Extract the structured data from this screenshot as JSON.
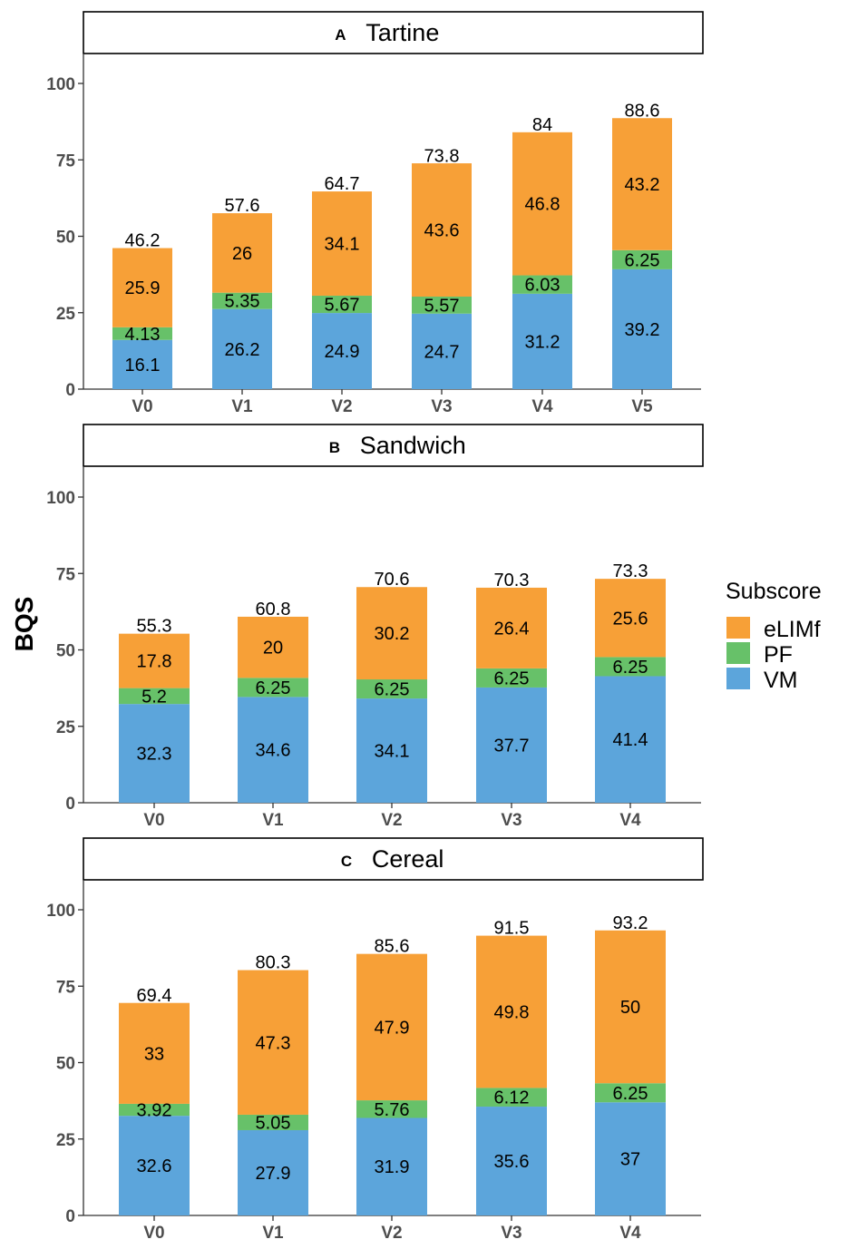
{
  "chart_data": [
    {
      "type": "bar",
      "stacked": true,
      "panel_letter": "A",
      "title": "Tartine",
      "categories": [
        "V0",
        "V1",
        "V2",
        "V3",
        "V4",
        "V5"
      ],
      "series": [
        {
          "name": "VM",
          "values": [
            16.1,
            26.2,
            24.9,
            24.7,
            31.2,
            39.2
          ]
        },
        {
          "name": "PF",
          "values": [
            4.13,
            5.35,
            5.67,
            5.57,
            6.03,
            6.25
          ]
        },
        {
          "name": "eLIMf",
          "values": [
            25.9,
            26,
            34.1,
            43.6,
            46.8,
            43.2
          ]
        }
      ],
      "totals": [
        46.2,
        57.6,
        64.7,
        73.8,
        84,
        88.6
      ],
      "ylim": [
        0,
        110
      ],
      "yticks": [
        0,
        25,
        50,
        75,
        100
      ]
    },
    {
      "type": "bar",
      "stacked": true,
      "panel_letter": "B",
      "title": "Sandwich",
      "categories": [
        "V0",
        "V1",
        "V2",
        "V3",
        "V4"
      ],
      "series": [
        {
          "name": "VM",
          "values": [
            32.3,
            34.6,
            34.1,
            37.7,
            41.4
          ]
        },
        {
          "name": "PF",
          "values": [
            5.2,
            6.25,
            6.25,
            6.25,
            6.25
          ]
        },
        {
          "name": "eLIMf",
          "values": [
            17.8,
            20,
            30.2,
            26.4,
            25.6
          ]
        }
      ],
      "totals": [
        55.3,
        60.8,
        70.6,
        70.3,
        73.3
      ],
      "ylim": [
        0,
        110
      ],
      "yticks": [
        0,
        25,
        50,
        75,
        100
      ]
    },
    {
      "type": "bar",
      "stacked": true,
      "panel_letter": "C",
      "title": "Cereal",
      "categories": [
        "V0",
        "V1",
        "V2",
        "V3",
        "V4"
      ],
      "series": [
        {
          "name": "VM",
          "values": [
            32.6,
            27.9,
            31.9,
            35.6,
            37
          ]
        },
        {
          "name": "PF",
          "values": [
            3.92,
            5.05,
            5.76,
            6.12,
            6.25
          ]
        },
        {
          "name": "eLIMf",
          "values": [
            33,
            47.3,
            47.9,
            49.8,
            50
          ]
        }
      ],
      "totals": [
        69.4,
        80.3,
        85.6,
        91.5,
        93.2
      ],
      "ylim": [
        0,
        110
      ],
      "yticks": [
        0,
        25,
        50,
        75,
        100
      ]
    }
  ],
  "ylabel": "BQS",
  "legend": {
    "title": "Subscore",
    "placement": "right",
    "items": [
      {
        "name": "eLIMf",
        "color": "#F7A037"
      },
      {
        "name": "PF",
        "color": "#67C169"
      },
      {
        "name": "VM",
        "color": "#5CA5DB"
      }
    ]
  },
  "colors": {
    "VM": "#5CA5DB",
    "PF": "#67C169",
    "eLIMf": "#F7A037"
  }
}
